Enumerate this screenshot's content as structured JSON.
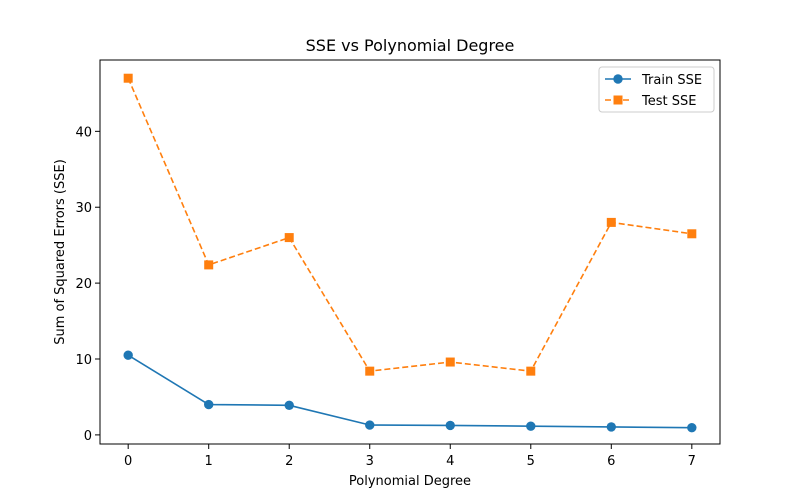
{
  "chart_data": {
    "type": "line",
    "title": "SSE vs Polynomial Degree",
    "xlabel": "Polynomial Degree",
    "ylabel": "Sum of Squared Errors (SSE)",
    "x": [
      0,
      1,
      2,
      3,
      4,
      5,
      6,
      7
    ],
    "x_ticks": [
      "0",
      "1",
      "2",
      "3",
      "4",
      "5",
      "6",
      "7"
    ],
    "y_ticks": [
      "0",
      "10",
      "20",
      "30",
      "40"
    ],
    "xlim": [
      -0.35,
      7.35
    ],
    "ylim": [
      -1.2,
      49.4
    ],
    "grid": false,
    "legend_position": "top-right",
    "series": [
      {
        "name": "Train SSE",
        "values": [
          10.5,
          4.0,
          3.9,
          1.3,
          1.25,
          1.15,
          1.05,
          0.95
        ],
        "color": "#1f77b4",
        "line_style": "solid",
        "marker": "circle"
      },
      {
        "name": "Test SSE",
        "values": [
          47.0,
          22.4,
          26.0,
          8.4,
          9.6,
          8.4,
          28.0,
          26.5
        ],
        "color": "#ff7f0e",
        "line_style": "dashed",
        "marker": "square"
      }
    ]
  }
}
